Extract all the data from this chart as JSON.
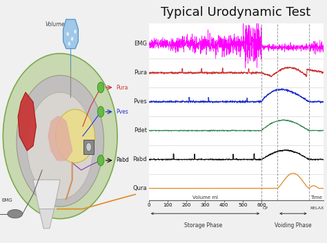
{
  "title": "Typical Urodynamic Test",
  "title_fontsize": 13,
  "title_color": "#111111",
  "background_color": "#f0f0f0",
  "chart_bg": "#ffffff",
  "traces": {
    "EMG": {
      "color": "#ff00ff",
      "base": 5.0
    },
    "Pura": {
      "color": "#cc3333",
      "base": 4.0
    },
    "Pves": {
      "color": "#2233cc",
      "base": 3.0
    },
    "Pdet": {
      "color": "#338855",
      "base": 2.0
    },
    "Pabd": {
      "color": "#111111",
      "base": 1.0
    },
    "Qura": {
      "color": "#e08820",
      "base": 0.0
    }
  },
  "x_vol_labels": [
    "0",
    "100",
    "200",
    "300",
    "400",
    "500",
    "600"
  ],
  "x_label": "Volume ml",
  "time_label": "Time",
  "storage_phase": "Storage Phase",
  "voiding_phase": "Voiding Phase",
  "cp_label": "CP",
  "relax_label": "RELAX",
  "dashed_line_color": "#999999",
  "vline1": 0.645,
  "vline2": 0.735,
  "vline3": 0.915,
  "label_fontsize": 6,
  "tick_fontsize": 5
}
